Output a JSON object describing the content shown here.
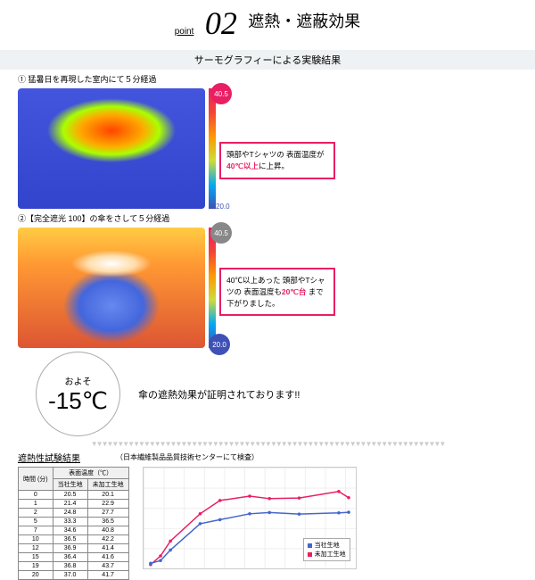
{
  "header": {
    "point": "point",
    "number": "02",
    "title": "遮熱・遮蔽効果"
  },
  "subtitle": "サーモグラフィーによる実験結果",
  "thermal1": {
    "label": "① 猛暑日を再現した室内にて５分経過",
    "scale_top": "40.5",
    "scale_bot": "20.0",
    "callout_pre": "頭部やTシャツの\n表面温度が\n",
    "callout_bold": "40℃以上",
    "callout_post": "に上昇。"
  },
  "thermal2": {
    "label": "②【完全遮光 100】の傘をさして５分経過",
    "scale_top": "40.5",
    "scale_bot": "20.0",
    "callout_pre": "40℃以上あった\n頭部やTシャツの\n表面温度も",
    "callout_bold": "20℃台",
    "callout_post": "\nまで下がりました。"
  },
  "circle": {
    "label": "およそ",
    "value": "-15℃"
  },
  "proof": "傘の遮熱効果が証明されております!!",
  "results": {
    "title": "遮熱性試験結果",
    "note": "（日本繊維製品品質技術センターにて検査）"
  },
  "table": {
    "head1": "時間\n(分)",
    "head2": "表面温度（℃）",
    "col1": "当社生地",
    "col2": "未加工生地",
    "rows": [
      [
        "0",
        "20.5",
        "20.1"
      ],
      [
        "1",
        "21.4",
        "22.9"
      ],
      [
        "2",
        "24.8",
        "27.7"
      ],
      [
        "5",
        "33.3",
        "36.5"
      ],
      [
        "7",
        "34.6",
        "40.8"
      ],
      [
        "10",
        "36.5",
        "42.2"
      ],
      [
        "12",
        "36.9",
        "41.4"
      ],
      [
        "15",
        "36.4",
        "41.6"
      ],
      [
        "19",
        "36.8",
        "43.7"
      ],
      [
        "20",
        "37.0",
        "41.7"
      ]
    ]
  },
  "chart": {
    "xlim": [
      0,
      20
    ],
    "ylim": [
      20,
      50
    ],
    "series1": {
      "name": "当社生地",
      "color": "#4466cc",
      "x": [
        0,
        1,
        2,
        5,
        7,
        10,
        12,
        15,
        19,
        20
      ],
      "y": [
        20.5,
        21.4,
        24.8,
        33.3,
        34.6,
        36.5,
        36.9,
        36.4,
        36.8,
        37.0
      ]
    },
    "series2": {
      "name": "未加工生地",
      "color": "#e91e63",
      "x": [
        0,
        1,
        2,
        5,
        7,
        10,
        12,
        15,
        19,
        20
      ],
      "y": [
        20.1,
        22.9,
        27.7,
        36.5,
        40.8,
        42.2,
        41.4,
        41.6,
        43.7,
        41.7
      ]
    }
  }
}
